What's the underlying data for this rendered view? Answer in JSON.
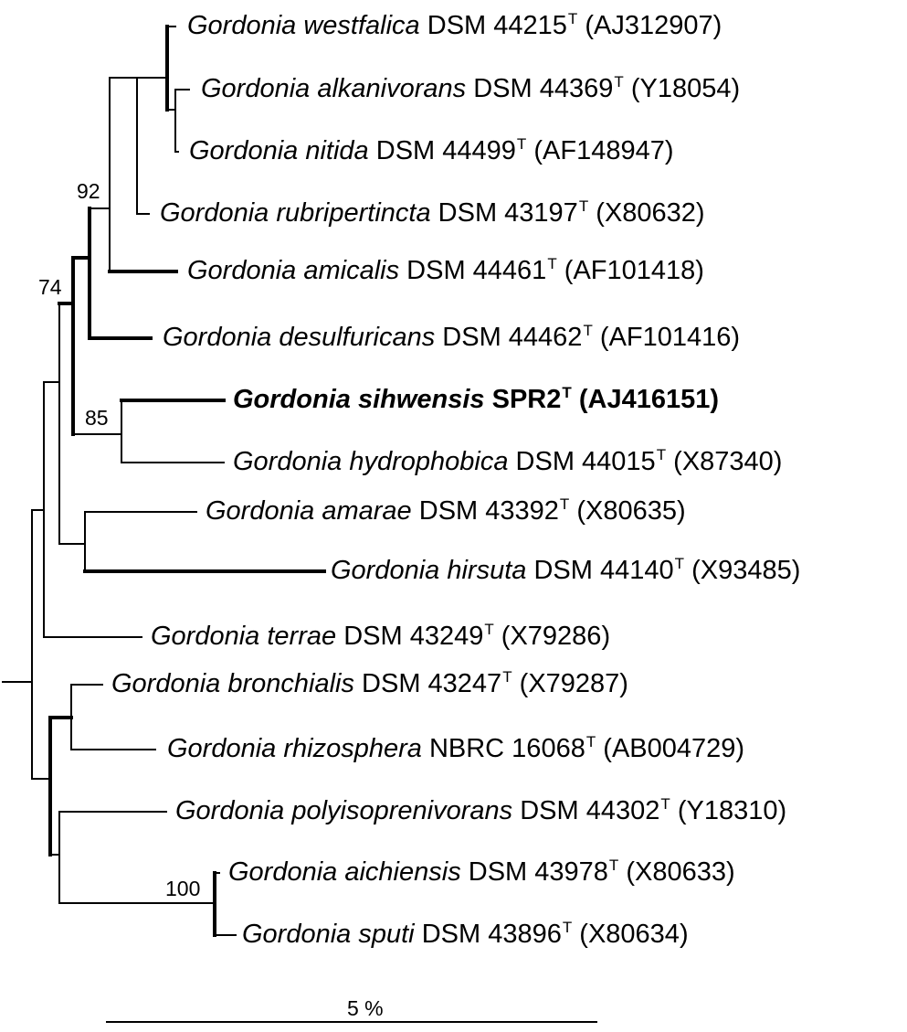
{
  "taxa": [
    {
      "genus_species": "Gordonia westfalica",
      "strain": "DSM 44215",
      "type": "T",
      "accession": "(AJ312907)",
      "bold": false
    },
    {
      "genus_species": "Gordonia alkanivorans",
      "strain": "DSM 44369",
      "type": "T",
      "accession": "(Y18054)",
      "bold": false
    },
    {
      "genus_species": "Gordonia nitida",
      "strain": "DSM 44499",
      "type": "T",
      "accession": "(AF148947)",
      "bold": false
    },
    {
      "genus_species": "Gordonia rubripertincta",
      "strain": "DSM 43197",
      "type": "T",
      "accession": "(X80632)",
      "bold": false
    },
    {
      "genus_species": "Gordonia amicalis",
      "strain": "DSM 44461",
      "type": "T",
      "accession": "(AF101418)",
      "bold": false
    },
    {
      "genus_species": "Gordonia desulfuricans",
      "strain": "DSM 44462",
      "type": "T",
      "accession": "(AF101416)",
      "bold": false
    },
    {
      "genus_species": "Gordonia sihwensis",
      "strain": "SPR2",
      "type": "T",
      "accession": "(AJ416151)",
      "bold": true
    },
    {
      "genus_species": "Gordonia hydrophobica",
      "strain": "DSM 44015",
      "type": "T",
      "accession": "(X87340)",
      "bold": false
    },
    {
      "genus_species": "Gordonia amarae",
      "strain": "DSM 43392",
      "type": "T",
      "accession": "(X80635)",
      "bold": false
    },
    {
      "genus_species": "Gordonia hirsuta",
      "strain": "DSM 44140",
      "type": "T",
      "accession": "(X93485)",
      "bold": false
    },
    {
      "genus_species": "Gordonia terrae",
      "strain": "DSM 43249",
      "type": "T",
      "accession": "(X79286)",
      "bold": false
    },
    {
      "genus_species": "Gordonia bronchialis",
      "strain": "DSM 43247",
      "type": "T",
      "accession": "(X79287)",
      "bold": false
    },
    {
      "genus_species": "Gordonia rhizosphera",
      "strain": "NBRC 16068",
      "type": "T",
      "accession": "(AB004729)",
      "bold": false
    },
    {
      "genus_species": "Gordonia polyisoprenivorans",
      "strain": "DSM 44302",
      "type": "T",
      "accession": "(Y18310)",
      "bold": false
    },
    {
      "genus_species": "Gordonia aichiensis",
      "strain": "DSM 43978",
      "type": "T",
      "accession": "(X80633)",
      "bold": false
    },
    {
      "genus_species": "Gordonia sputi",
      "strain": "DSM 43896",
      "type": "T",
      "accession": "(X80634)",
      "bold": false
    }
  ],
  "bootstrap_values": [
    "92",
    "74",
    "85",
    "100"
  ],
  "scale_bar_label": "5 %"
}
